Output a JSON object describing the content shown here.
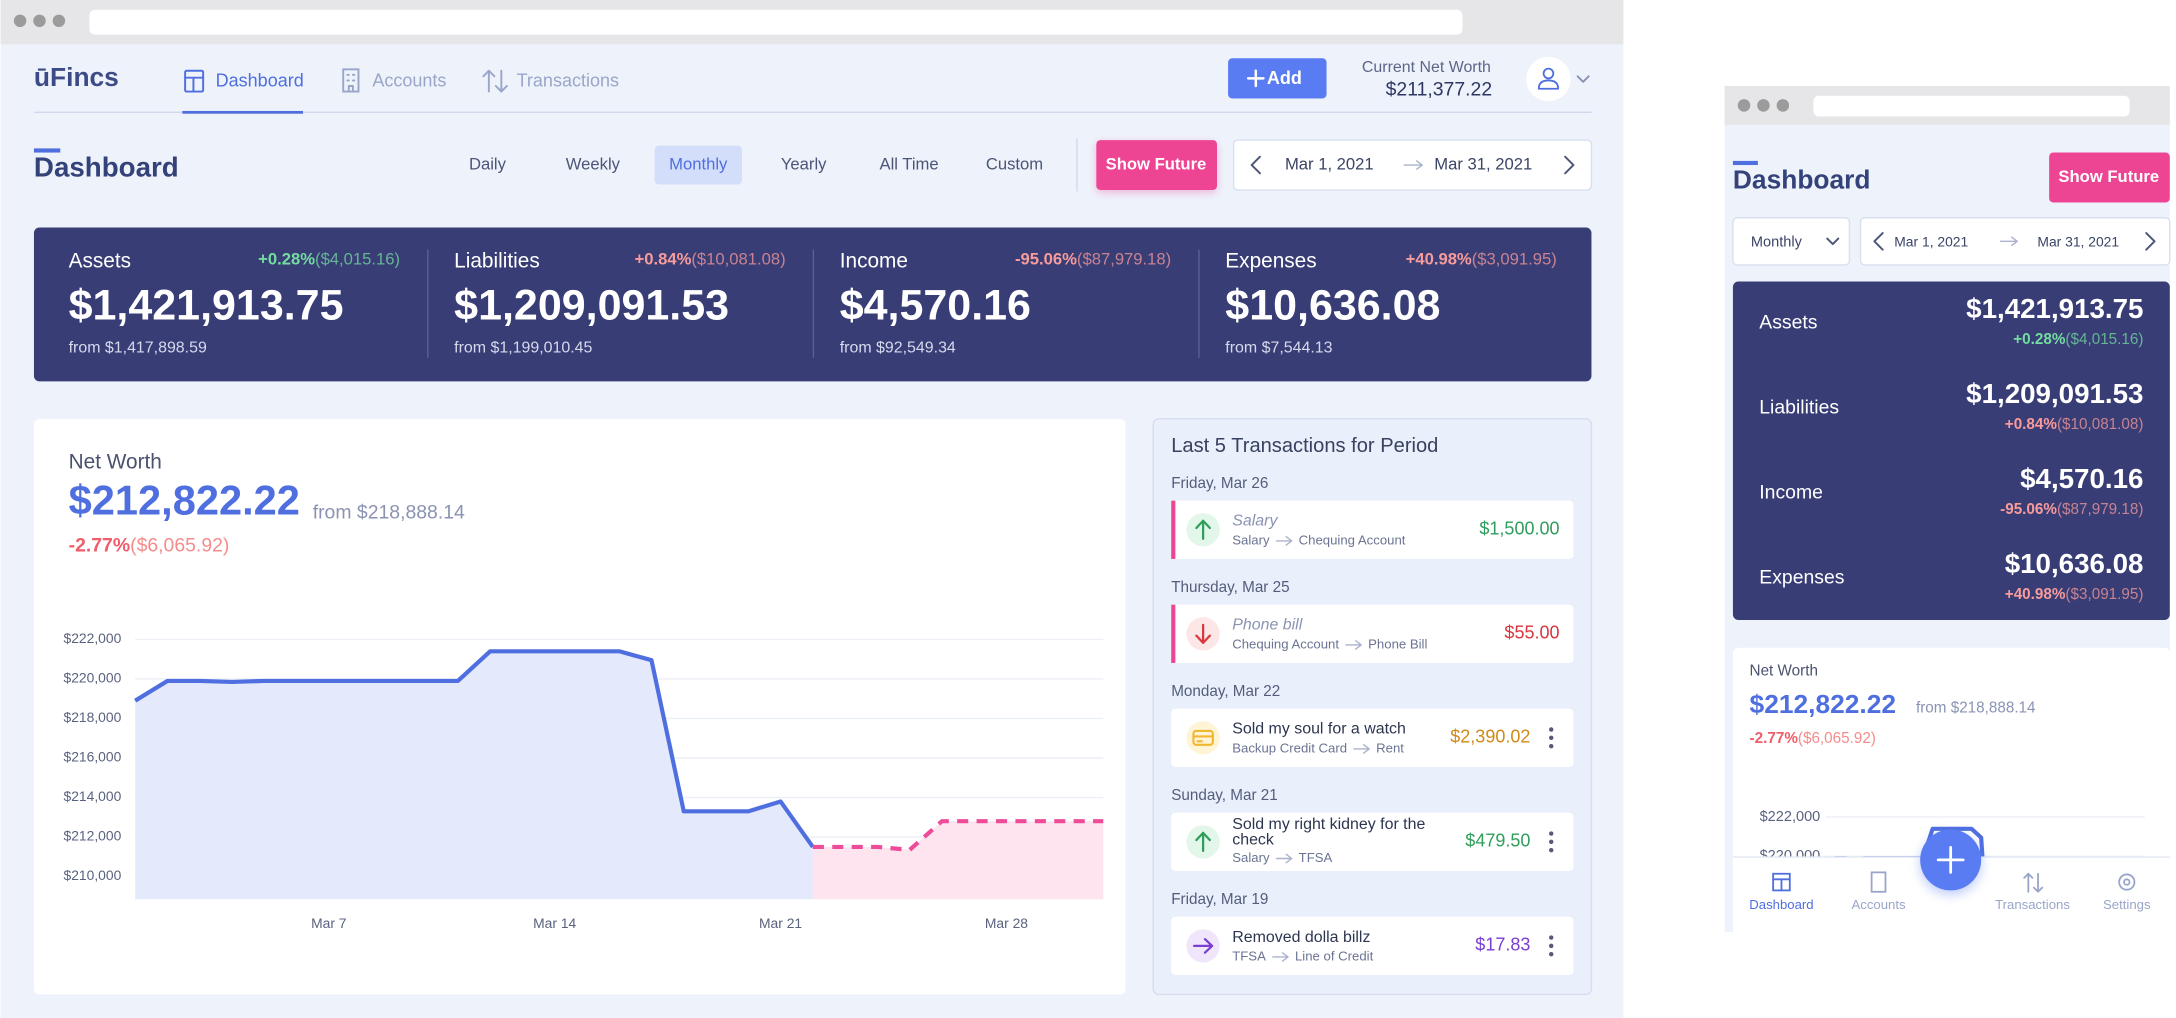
{
  "app": {
    "logo": "ūFincs",
    "tabs": [
      "Dashboard",
      "Accounts",
      "Transactions"
    ],
    "active_tab": 0,
    "add_button": "Add",
    "net_worth_label": "Current Net Worth",
    "net_worth_value": "$211,377.22"
  },
  "header": {
    "title": "Dashboard",
    "periods": [
      "Daily",
      "Weekly",
      "Monthly",
      "Yearly",
      "All Time",
      "Custom"
    ],
    "active_period": 2,
    "show_future": "Show Future",
    "start_date": "Mar 1, 2021",
    "end_date": "Mar 31, 2021"
  },
  "summary": [
    {
      "label": "Assets",
      "value": "$1,421,913.75",
      "change": "+0.28%",
      "change_amount": "($4,015.16)",
      "from": "from $1,417,898.59",
      "change_color": "#74dca0"
    },
    {
      "label": "Liabilities",
      "value": "$1,209,091.53",
      "change": "+0.84%",
      "change_amount": "($10,081.08)",
      "from": "from $1,199,010.45",
      "change_color": "#f79b9b"
    },
    {
      "label": "Income",
      "value": "$4,570.16",
      "change": "-95.06%",
      "change_amount": "($87,979.18)",
      "from": "from $92,549.34",
      "change_color": "#f79b9b"
    },
    {
      "label": "Expenses",
      "value": "$10,636.08",
      "change": "+40.98%",
      "change_amount": "($3,091.95)",
      "from": "from $7,544.13",
      "change_color": "#f79b9b"
    }
  ],
  "net_worth": {
    "label": "Net Worth",
    "value": "$212,822.22",
    "from": "from $218,888.14",
    "change": "-2.77%",
    "change_amount": "($6,065.92)"
  },
  "chart_data": {
    "type": "line",
    "x": [
      1,
      2,
      3,
      4,
      5,
      6,
      7,
      8,
      9,
      10,
      11,
      12,
      13,
      14,
      15,
      16,
      17,
      18,
      19,
      20,
      21,
      22,
      23,
      24,
      25,
      26,
      27,
      28,
      29,
      30,
      31
    ],
    "xlim": [
      1,
      31
    ],
    "xticks": [
      {
        "value": 7,
        "label": "Mar 7"
      },
      {
        "value": 14,
        "label": "Mar 14"
      },
      {
        "value": 21,
        "label": "Mar 21"
      },
      {
        "value": 28,
        "label": "Mar 28"
      }
    ],
    "ylim": [
      208850,
      222600
    ],
    "yticks": [
      {
        "value": 210000,
        "label": "$210,000"
      },
      {
        "value": 212000,
        "label": "$212,000"
      },
      {
        "value": 214000,
        "label": "$214,000"
      },
      {
        "value": 216000,
        "label": "$216,000"
      },
      {
        "value": 218000,
        "label": "$218,000"
      },
      {
        "value": 220000,
        "label": "$220,000"
      },
      {
        "value": 222000,
        "label": "$222,000"
      }
    ],
    "grid": true,
    "series": [
      {
        "color": "#4f6fe0",
        "fill": "#e4e9fb",
        "dashed": false,
        "values": [
          218900,
          219900,
          219900,
          219850,
          219900,
          219900,
          219900,
          219900,
          219900,
          219900,
          219900,
          221400,
          221400,
          221400,
          221400,
          221400,
          220950,
          213300,
          213300,
          213300,
          213800,
          211500,
          null,
          null,
          null,
          null,
          null,
          null,
          null,
          null,
          null
        ]
      },
      {
        "color": "#ee4b98",
        "fill": "#fde4ef",
        "dashed": true,
        "values": [
          null,
          null,
          null,
          null,
          null,
          null,
          null,
          null,
          null,
          null,
          null,
          null,
          null,
          null,
          null,
          null,
          null,
          null,
          null,
          null,
          null,
          211500,
          211500,
          211500,
          211350,
          212800,
          212800,
          212800,
          212800,
          212800,
          212800
        ]
      }
    ]
  },
  "transactions": {
    "title": "Last 5 Transactions for Period",
    "items": [
      {
        "date": "Friday, Mar 26",
        "description": "Salary",
        "from": "Salary",
        "to": "Chequing Account",
        "amount": "$1,500.00",
        "kind": "income",
        "scheduled": true
      },
      {
        "date": "Thursday, Mar 25",
        "description": "Phone bill",
        "from": "Chequing Account",
        "to": "Phone Bill",
        "amount": "$55.00",
        "kind": "expense",
        "scheduled": true
      },
      {
        "date": "Monday, Mar 22",
        "description": "Sold my soul for a watch",
        "from": "Backup Credit Card",
        "to": "Rent",
        "amount": "$2,390.02",
        "kind": "debt",
        "scheduled": false
      },
      {
        "date": "Sunday, Mar 21",
        "description": "Sold my right kidney for the check",
        "from": "Salary",
        "to": "TFSA",
        "amount": "$479.50",
        "kind": "income",
        "scheduled": false
      },
      {
        "date": "Friday, Mar 19",
        "description": "Removed dolla billz",
        "from": "TFSA",
        "to": "Line of Credit",
        "amount": "$17.83",
        "kind": "transfer",
        "scheduled": false
      }
    ]
  },
  "mobile": {
    "nav": [
      "Dashboard",
      "Accounts",
      "Transactions",
      "Settings"
    ],
    "active_nav": 0
  }
}
